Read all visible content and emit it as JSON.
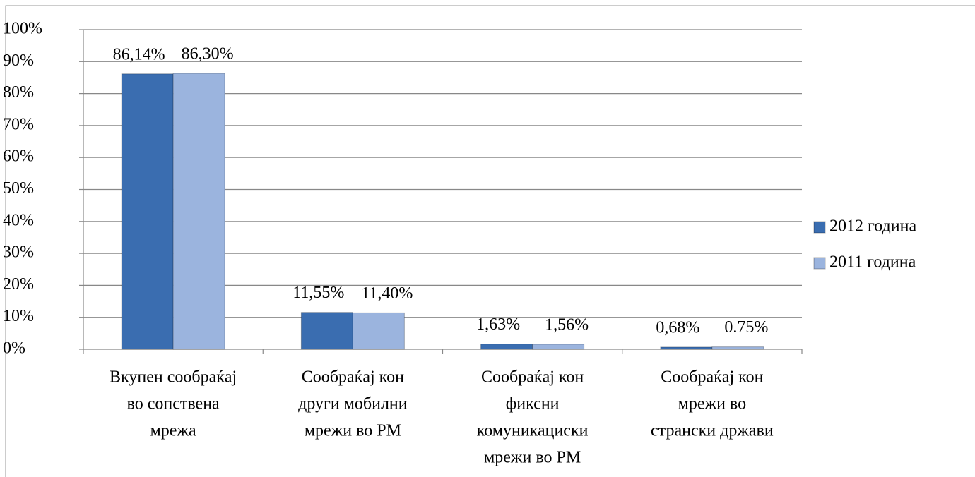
{
  "chart_data": {
    "type": "bar",
    "categories": [
      [
        "Вкупен сообраќај",
        "во сопствена",
        "мрежа"
      ],
      [
        "Сообраќај кон",
        "други мобилни",
        "мрежи во РМ"
      ],
      [
        "Сообраќај кон",
        "фиксни",
        "комуникациски",
        "мрежи во РМ"
      ],
      [
        "Сообраќај кон",
        "мрежи во",
        "странски држави"
      ]
    ],
    "series": [
      {
        "name": "2012 година",
        "color": "#3a6db0",
        "values": [
          86.14,
          11.55,
          1.63,
          0.68
        ],
        "value_labels": [
          "86,14%",
          "11,55%",
          "1,63%",
          "0,68%"
        ]
      },
      {
        "name": "2011 година",
        "color": "#9bb4de",
        "values": [
          86.3,
          11.4,
          1.56,
          0.75
        ],
        "value_labels": [
          "86,30%",
          "11,40%",
          "1,56%",
          "0.75%"
        ]
      }
    ],
    "ylim": [
      0,
      100
    ],
    "yticks": [
      {
        "value": 0,
        "label": "0%"
      },
      {
        "value": 10,
        "label": "10%"
      },
      {
        "value": 20,
        "label": "20%"
      },
      {
        "value": 30,
        "label": "30%"
      },
      {
        "value": 40,
        "label": "40%"
      },
      {
        "value": 50,
        "label": "50%"
      },
      {
        "value": 60,
        "label": "60%"
      },
      {
        "value": 70,
        "label": "70%"
      },
      {
        "value": 80,
        "label": "80%"
      },
      {
        "value": 90,
        "label": "90%"
      },
      {
        "value": 100,
        "label": "100%"
      }
    ],
    "grid": true,
    "legend": "right"
  }
}
